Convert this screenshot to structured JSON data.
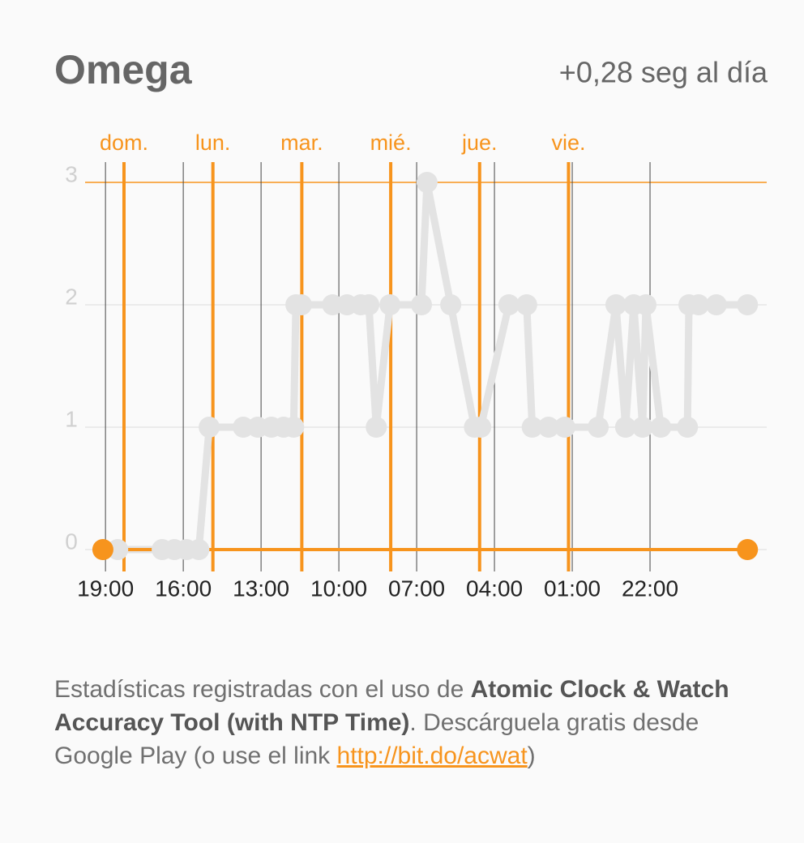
{
  "header": {
    "title": "Omega",
    "rate": "+0,28 seg al día"
  },
  "chart_data": {
    "type": "line",
    "xlim": [
      -5.5,
      178.5
    ],
    "ylim": [
      0,
      3
    ],
    "xticks": [
      {
        "value": 0,
        "label": "19:00"
      },
      {
        "value": 21,
        "label": "16:00"
      },
      {
        "value": 42,
        "label": "13:00"
      },
      {
        "value": 63,
        "label": "10:00"
      },
      {
        "value": 84,
        "label": "07:00"
      },
      {
        "value": 105,
        "label": "04:00"
      },
      {
        "value": 126,
        "label": "01:00"
      },
      {
        "value": 147,
        "label": "22:00"
      }
    ],
    "yticks": [
      0,
      1,
      2,
      3
    ],
    "grid": true,
    "day_lines": [
      {
        "value": 5,
        "label": "dom."
      },
      {
        "value": 29,
        "label": "lun."
      },
      {
        "value": 53,
        "label": "mar."
      },
      {
        "value": 77,
        "label": "mié."
      },
      {
        "value": 101,
        "label": "jue."
      },
      {
        "value": 125,
        "label": "vie."
      }
    ],
    "day_color": "#f7941d",
    "series": [
      {
        "color": "#e3e3e3",
        "x": [
          3.3,
          15.3,
          18.6,
          21.9,
          25.2,
          28,
          37.2,
          41.1,
          44.8,
          48.1,
          50.8,
          51.4,
          52.9,
          61.3,
          65.2,
          68.9,
          71.1,
          73.1,
          76.8,
          85.3,
          86.8,
          93.2,
          99.6,
          101.3,
          108.9,
          113.7,
          115.2,
          119.6,
          124,
          133,
          137.8,
          140.4,
          142.6,
          145,
          145.9,
          149.9,
          157.1,
          157.5,
          160.1,
          164.9,
          173.3
        ],
        "values": [
          0,
          0,
          0,
          0,
          0,
          1,
          1,
          1,
          1,
          1,
          1,
          2,
          2,
          2,
          2,
          2,
          2,
          1,
          2,
          2,
          3,
          2,
          1,
          1,
          2,
          2,
          1,
          1,
          1,
          1,
          2,
          1,
          2,
          1,
          2,
          1,
          1,
          2,
          2,
          2,
          2
        ]
      },
      {
        "color": "#f7941d",
        "x": [
          -0.7,
          173.3
        ],
        "values": [
          0,
          0
        ]
      }
    ]
  },
  "footer": {
    "text_1": "Estadísticas registradas con el uso de ",
    "bold": "Atomic Clock & Watch Accuracy Tool (with NTP Time)",
    "text_2": ". Descárguela gratis desde Google Play (o use el link ",
    "link": "http://bit.do/acwat",
    "text_3": ")"
  }
}
